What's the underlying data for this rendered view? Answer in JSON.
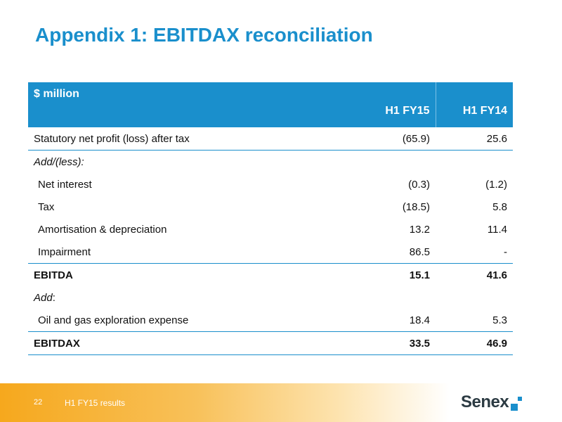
{
  "page": {
    "title": "Appendix 1: EBITDAX reconciliation"
  },
  "table": {
    "header": {
      "label": "$ million",
      "col_a": "H1 FY15",
      "col_b": "H1 FY14"
    },
    "rows": [
      {
        "label": "Statutory net profit (loss) after tax",
        "a": "(65.9)",
        "b": "25.6"
      },
      {
        "label": "Add/(less):",
        "a": "",
        "b": ""
      },
      {
        "label": "Net interest",
        "a": "(0.3)",
        "b": "(1.2)"
      },
      {
        "label": "Tax",
        "a": "(18.5)",
        "b": "5.8"
      },
      {
        "label": "Amortisation & depreciation",
        "a": "13.2",
        "b": "11.4"
      },
      {
        "label": "Impairment",
        "a": "86.5",
        "b": "-"
      },
      {
        "label": "EBITDA",
        "a": "15.1",
        "b": "41.6"
      },
      {
        "label_italic": "Add",
        "label_rest": ":",
        "a": "",
        "b": ""
      },
      {
        "label": "Oil and gas exploration expense",
        "a": "18.4",
        "b": "5.3"
      },
      {
        "label": "EBITDAX",
        "a": "33.5",
        "b": "46.9"
      }
    ]
  },
  "footer": {
    "page_number": "22",
    "text": "H1 FY15 results",
    "logo_text": "Senex"
  },
  "colors": {
    "accent": "#1a8fcc",
    "footer_orange": "#f6a81d"
  }
}
